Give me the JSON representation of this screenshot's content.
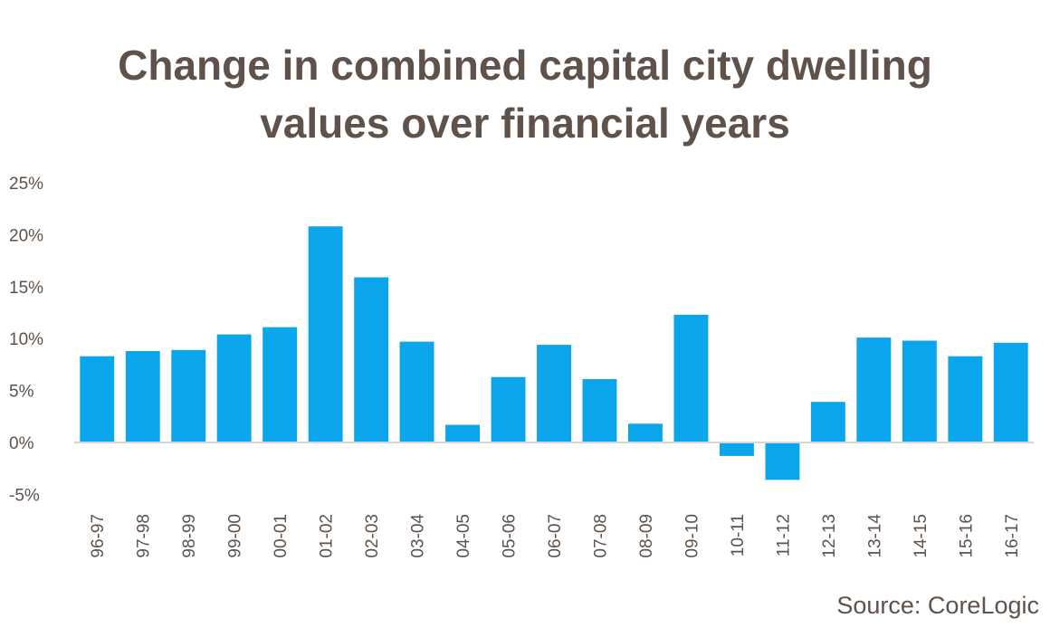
{
  "chart_data": {
    "type": "bar",
    "title_lines": [
      "Change in combined capital city dwelling",
      "values over financial years"
    ],
    "categories": [
      "96-97",
      "97-98",
      "98-99",
      "99-00",
      "00-01",
      "01-02",
      "02-03",
      "03-04",
      "04-05",
      "05-06",
      "06-07",
      "07-08",
      "08-09",
      "09-10",
      "10-11",
      "11-12",
      "12-13",
      "13-14",
      "14-15",
      "15-16",
      "16-17"
    ],
    "values": [
      8.3,
      8.8,
      8.9,
      10.4,
      11.1,
      20.8,
      15.9,
      9.7,
      1.7,
      6.3,
      9.4,
      6.1,
      1.8,
      12.3,
      -1.3,
      -3.6,
      3.9,
      10.1,
      9.8,
      8.3,
      9.6
    ],
    "y_ticks": [
      -5,
      0,
      5,
      10,
      15,
      20,
      25
    ],
    "y_tick_labels": [
      "-5%",
      "0%",
      "5%",
      "10%",
      "15%",
      "20%",
      "25%"
    ],
    "ylim": [
      -5,
      25
    ],
    "bar_color": "#0aa5ea",
    "axis_color": "#d6d6d6",
    "text_color": "#5e524b",
    "grid": false,
    "legend": false,
    "source": "Source: CoreLogic"
  }
}
